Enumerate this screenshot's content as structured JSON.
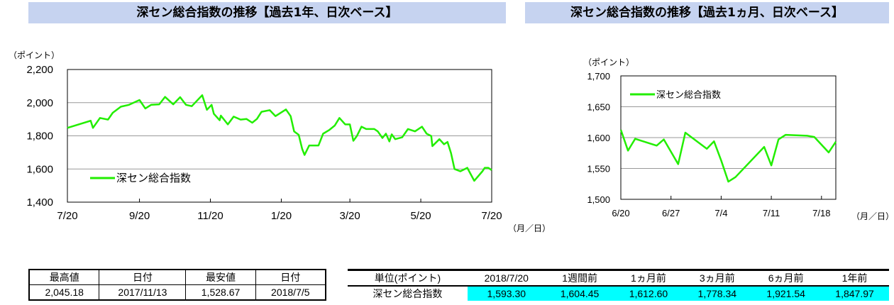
{
  "chart_data": [
    {
      "type": "line",
      "title": "深セン総合指数の推移【過去1年、日次ベース】",
      "ylabel": "（ポイント）",
      "xlabel": "（月／日）",
      "ylim": [
        1400,
        2200
      ],
      "yticks": [
        "1,400",
        "1,600",
        "1,800",
        "2,000",
        "2,200"
      ],
      "ytick_values": [
        1400,
        1600,
        1800,
        2000,
        2200
      ],
      "xlim": [
        "2017-07-20",
        "2018-07-20"
      ],
      "xticks": [
        {
          "label": "7/20",
          "date": "2017-07-20"
        },
        {
          "label": "9/20",
          "date": "2017-09-20"
        },
        {
          "label": "11/20",
          "date": "2017-11-20"
        },
        {
          "label": "1/20",
          "date": "2018-01-20"
        },
        {
          "label": "3/20",
          "date": "2018-03-20"
        },
        {
          "label": "5/20",
          "date": "2018-05-20"
        },
        {
          "label": "7/20",
          "date": "2018-07-20"
        }
      ],
      "grid": true,
      "legend_position": "bottom-left",
      "color": "#22EE00",
      "series": [
        {
          "name": "深セン総合指数",
          "points": [
            [
              "2017-07-20",
              1848
            ],
            [
              "2017-08-09",
              1891
            ],
            [
              "2017-08-11",
              1848
            ],
            [
              "2017-08-17",
              1908
            ],
            [
              "2017-08-24",
              1898
            ],
            [
              "2017-08-28",
              1939
            ],
            [
              "2017-09-04",
              1976
            ],
            [
              "2017-09-11",
              1987
            ],
            [
              "2017-09-20",
              2016
            ],
            [
              "2017-09-25",
              1965
            ],
            [
              "2017-09-30",
              1987
            ],
            [
              "2017-10-07",
              1990
            ],
            [
              "2017-10-12",
              2035
            ],
            [
              "2017-10-19",
              1990
            ],
            [
              "2017-10-25",
              2033
            ],
            [
              "2017-10-30",
              1987
            ],
            [
              "2017-11-04",
              1979
            ],
            [
              "2017-11-13",
              2045.18
            ],
            [
              "2017-11-17",
              1957
            ],
            [
              "2017-11-21",
              1987
            ],
            [
              "2017-11-23",
              1933
            ],
            [
              "2017-11-28",
              1894
            ],
            [
              "2017-11-29",
              1922
            ],
            [
              "2017-12-05",
              1869
            ],
            [
              "2017-12-10",
              1916
            ],
            [
              "2017-12-16",
              1898
            ],
            [
              "2017-12-21",
              1902
            ],
            [
              "2017-12-26",
              1879
            ],
            [
              "2017-12-30",
              1902
            ],
            [
              "2018-01-03",
              1945
            ],
            [
              "2018-01-10",
              1955
            ],
            [
              "2018-01-15",
              1919
            ],
            [
              "2018-01-24",
              1959
            ],
            [
              "2018-01-28",
              1919
            ],
            [
              "2018-01-31",
              1827
            ],
            [
              "2018-02-04",
              1806
            ],
            [
              "2018-02-07",
              1721
            ],
            [
              "2018-02-09",
              1685
            ],
            [
              "2018-02-13",
              1742
            ],
            [
              "2018-02-21",
              1742
            ],
            [
              "2018-02-25",
              1813
            ],
            [
              "2018-03-02",
              1834
            ],
            [
              "2018-03-07",
              1862
            ],
            [
              "2018-03-11",
              1908
            ],
            [
              "2018-03-16",
              1869
            ],
            [
              "2018-03-20",
              1869
            ],
            [
              "2018-03-23",
              1770
            ],
            [
              "2018-03-26",
              1799
            ],
            [
              "2018-03-30",
              1855
            ],
            [
              "2018-04-03",
              1841
            ],
            [
              "2018-04-10",
              1841
            ],
            [
              "2018-04-13",
              1827
            ],
            [
              "2018-04-17",
              1787
            ],
            [
              "2018-04-20",
              1813
            ],
            [
              "2018-04-23",
              1766
            ],
            [
              "2018-04-25",
              1809
            ],
            [
              "2018-04-28",
              1780
            ],
            [
              "2018-05-04",
              1791
            ],
            [
              "2018-05-09",
              1841
            ],
            [
              "2018-05-15",
              1827
            ],
            [
              "2018-05-21",
              1855
            ],
            [
              "2018-05-25",
              1813
            ],
            [
              "2018-05-29",
              1799
            ],
            [
              "2018-05-30",
              1738
            ],
            [
              "2018-06-05",
              1780
            ],
            [
              "2018-06-09",
              1749
            ],
            [
              "2018-06-12",
              1763
            ],
            [
              "2018-06-15",
              1695
            ],
            [
              "2018-06-18",
              1600
            ],
            [
              "2018-06-23",
              1586
            ],
            [
              "2018-06-29",
              1607
            ],
            [
              "2018-07-05",
              1528.67
            ],
            [
              "2018-07-12",
              1586
            ],
            [
              "2018-07-14",
              1607
            ],
            [
              "2018-07-17",
              1607
            ],
            [
              "2018-07-20",
              1593.3
            ]
          ]
        }
      ]
    },
    {
      "type": "line",
      "title": "深セン総合指数の推移【過去1ヵ月、日次ベース】",
      "ylabel": "（ポイント）",
      "xlabel": "（月／日）",
      "ylim": [
        1500,
        1700
      ],
      "yticks": [
        "1,500",
        "1,550",
        "1,600",
        "1,650",
        "1,700"
      ],
      "ytick_values": [
        1500,
        1550,
        1600,
        1650,
        1700
      ],
      "xlim": [
        "2018-06-20",
        "2018-07-20"
      ],
      "xticks": [
        {
          "label": "6/20",
          "date": "2018-06-20"
        },
        {
          "label": "6/27",
          "date": "2018-06-27"
        },
        {
          "label": "7/4",
          "date": "2018-07-04"
        },
        {
          "label": "7/11",
          "date": "2018-07-11"
        },
        {
          "label": "7/18",
          "date": "2018-07-18"
        }
      ],
      "grid": true,
      "legend_position": "top-left",
      "color": "#22EE00",
      "series": [
        {
          "name": "深セン総合指数",
          "points": [
            [
              "2018-06-20",
              1612.6
            ],
            [
              "2018-06-21",
              1579
            ],
            [
              "2018-06-22",
              1598
            ],
            [
              "2018-06-25",
              1587
            ],
            [
              "2018-06-26",
              1597
            ],
            [
              "2018-06-28",
              1557
            ],
            [
              "2018-06-29",
              1608
            ],
            [
              "2018-07-02",
              1582
            ],
            [
              "2018-07-03",
              1594
            ],
            [
              "2018-07-04",
              1563
            ],
            [
              "2018-07-05",
              1528.67
            ],
            [
              "2018-07-06",
              1536
            ],
            [
              "2018-07-10",
              1585
            ],
            [
              "2018-07-11",
              1555
            ],
            [
              "2018-07-12",
              1597
            ],
            [
              "2018-07-13",
              1604.45
            ],
            [
              "2018-07-16",
              1603
            ],
            [
              "2018-07-17",
              1601
            ],
            [
              "2018-07-19",
              1576
            ],
            [
              "2018-07-20",
              1593.3
            ]
          ]
        }
      ]
    }
  ],
  "highlow_table": {
    "headers": [
      "最高値",
      "日付",
      "最安値",
      "日付"
    ],
    "row": [
      "2,045.18",
      "2017/11/13",
      "1,528.67",
      "2018/7/5"
    ]
  },
  "compare_table": {
    "headers": [
      "単位(ポイント)",
      "2018/7/20",
      "1週間前",
      "1ヵ月前",
      "3ヵ月前",
      "6ヵ月前",
      "1年前"
    ],
    "row_label": "深セン総合指数",
    "row": [
      "1,593.30",
      "1,604.45",
      "1,612.60",
      "1,778.34",
      "1,921.54",
      "1,847.97"
    ],
    "highlight": "#00FFFF"
  }
}
